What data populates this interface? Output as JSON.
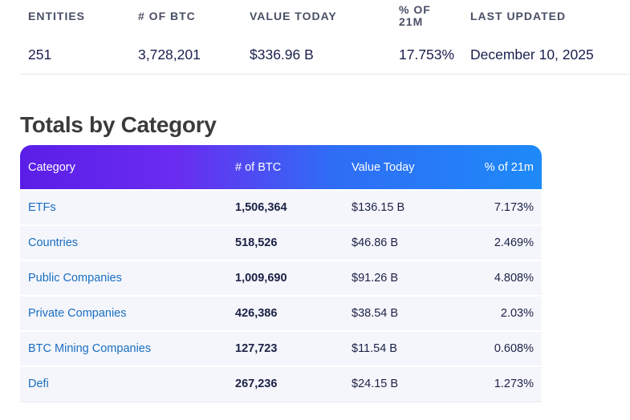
{
  "summary": {
    "headers": {
      "entities": "ENTITIES",
      "btc": "# OF BTC",
      "value": "VALUE TODAY",
      "pct": "% OF 21M",
      "updated": "LAST UPDATED"
    },
    "values": {
      "entities": "251",
      "btc": "3,728,201",
      "value": "$336.96 B",
      "pct": "17.753%",
      "updated": "December 10, 2025"
    }
  },
  "section_title": "Totals by Category",
  "table": {
    "columns": [
      "Category",
      "# of BTC",
      "Value Today",
      "% of 21m"
    ],
    "rows": [
      {
        "category": "ETFs",
        "btc": "1,506,364",
        "value": "$136.15 B",
        "pct": "7.173%"
      },
      {
        "category": "Countries",
        "btc": "518,526",
        "value": "$46.86 B",
        "pct": "2.469%"
      },
      {
        "category": "Public Companies",
        "btc": "1,009,690",
        "value": "$91.26 B",
        "pct": "4.808%"
      },
      {
        "category": "Private Companies",
        "btc": "426,386",
        "value": "$38.54 B",
        "pct": "2.03%"
      },
      {
        "category": "BTC Mining Companies",
        "btc": "127,723",
        "value": "$11.54 B",
        "pct": "0.608%"
      },
      {
        "category": "Defi",
        "btc": "267,236",
        "value": "$24.15 B",
        "pct": "1.273%"
      }
    ]
  },
  "colors": {
    "header_gradient_start": "#5a1ee8",
    "header_gradient_end": "#1e8af9",
    "link": "#1a6ec0",
    "row_background": "#f4f6fb"
  }
}
